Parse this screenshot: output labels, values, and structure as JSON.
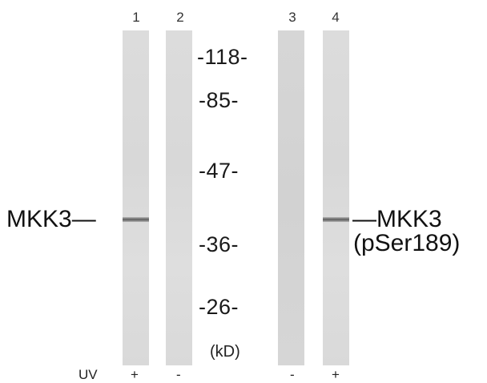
{
  "lanes": [
    {
      "number": "1",
      "uv": "+"
    },
    {
      "number": "2",
      "uv": "-"
    },
    {
      "number": "3",
      "uv": "-"
    },
    {
      "number": "4",
      "uv": "+"
    }
  ],
  "markers": [
    "-118-",
    "-85-",
    "-47-",
    "-36-",
    "-26-"
  ],
  "unit": "(kD)",
  "left_label": "MKK3—",
  "right_label_line1": "—MKK3",
  "right_label_line2": "(pSer189)",
  "uv_label": "UV"
}
